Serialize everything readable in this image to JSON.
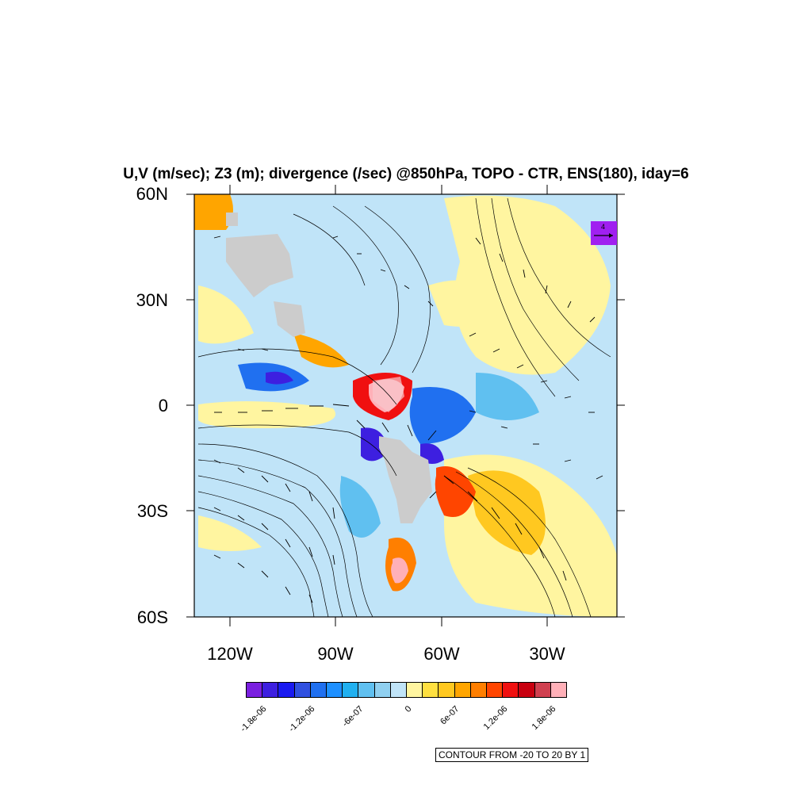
{
  "title": "U,V (m/sec); Z3 (m); divergence (/sec) @850hPa, TOPO - CTR, ENS(180), iday=6",
  "lat_labels": [
    "60N",
    "30N",
    "0",
    "30S",
    "60S"
  ],
  "lon_labels": [
    "120W",
    "90W",
    "60W",
    "30W"
  ],
  "colorbar": {
    "colors": [
      "#7a1fe0",
      "#3d1fe0",
      "#1a1af0",
      "#3050e0",
      "#2070f0",
      "#1e90ff",
      "#20b0f0",
      "#60c0f0",
      "#90d0f0",
      "#c0e4f8",
      "#fff5a0",
      "#ffe040",
      "#ffc820",
      "#ffa500",
      "#ff7f00",
      "#ff4500",
      "#f01010",
      "#c80010",
      "#d04050",
      "#ffb0b8"
    ],
    "labels": [
      "-1.8e-06",
      "-1.2e-06",
      "-6e-07",
      "0",
      "6e-07",
      "1.2e-06",
      "1.8e-06"
    ]
  },
  "contour_note": "CONTOUR FROM -20 TO 20 BY 1",
  "reference_vector": "4",
  "colors": {
    "land_mask": "#cccccc",
    "background_field": "#c0e4f8"
  }
}
